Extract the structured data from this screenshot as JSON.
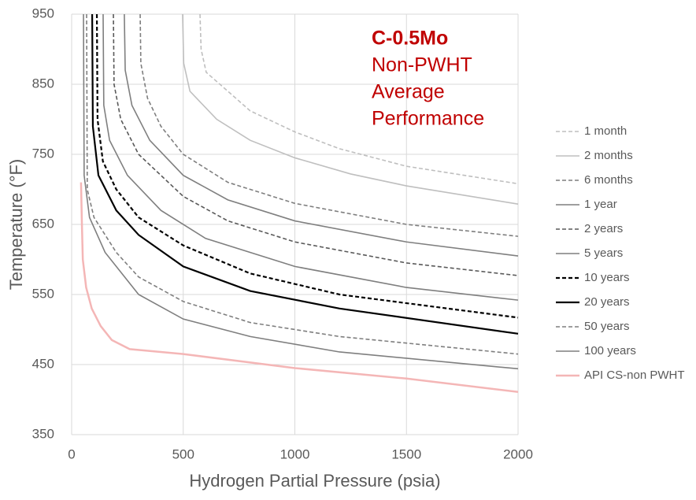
{
  "chart_data": {
    "type": "line",
    "annotation": {
      "lines": [
        "C-0.5Mo",
        "Non-PWHT",
        "Average",
        "Performance"
      ],
      "color": "#c00000"
    },
    "xlabel": "Hydrogen Partial Pressure (psia)",
    "ylabel": "Temperature (°F)",
    "xlim": [
      0,
      2000
    ],
    "xticks": [
      0,
      500,
      1000,
      1500,
      2000
    ],
    "ylim": [
      350,
      950
    ],
    "yticks": [
      350,
      450,
      550,
      650,
      750,
      850,
      950
    ],
    "grid": true,
    "legend": "right",
    "series": [
      {
        "name": "1 month",
        "color": "#bfbfbf",
        "dash": true,
        "x": [
          575,
          580,
          603,
          700,
          800,
          1000,
          1200,
          1500,
          2000
        ],
        "values": [
          950,
          900,
          867,
          840,
          812,
          782,
          758,
          733,
          708
        ]
      },
      {
        "name": "2 months",
        "color": "#bfbfbf",
        "dash": false,
        "x": [
          497,
          502,
          530,
          650,
          800,
          1000,
          1250,
          1500,
          2000
        ],
        "values": [
          950,
          880,
          840,
          800,
          770,
          745,
          722,
          705,
          679
        ]
      },
      {
        "name": "6 months",
        "color": "#7f7f7f",
        "dash": true,
        "x": [
          307,
          310,
          340,
          400,
          500,
          700,
          1000,
          1500,
          2000
        ],
        "values": [
          950,
          880,
          830,
          790,
          750,
          710,
          680,
          650,
          633
        ]
      },
      {
        "name": "1 year",
        "color": "#7f7f7f",
        "dash": false,
        "x": [
          236,
          240,
          270,
          350,
          500,
          700,
          1000,
          1500,
          2000
        ],
        "values": [
          950,
          870,
          820,
          770,
          720,
          685,
          655,
          625,
          605
        ]
      },
      {
        "name": "2 years",
        "color": "#595959",
        "dash": true,
        "x": [
          187,
          190,
          220,
          300,
          500,
          700,
          1000,
          1500,
          2000
        ],
        "values": [
          950,
          850,
          800,
          750,
          690,
          655,
          625,
          595,
          577
        ]
      },
      {
        "name": "5 years",
        "color": "#7f7f7f",
        "dash": false,
        "x": [
          141,
          144,
          170,
          250,
          400,
          600,
          1000,
          1500,
          2000
        ],
        "values": [
          950,
          820,
          770,
          720,
          670,
          630,
          590,
          560,
          542
        ]
      },
      {
        "name": "10 years",
        "color": "#000000",
        "dash": true,
        "x": [
          113,
          116,
          140,
          200,
          300,
          500,
          800,
          1200,
          2000
        ],
        "values": [
          950,
          800,
          740,
          700,
          660,
          620,
          580,
          550,
          517
        ]
      },
      {
        "name": "20 years",
        "color": "#000000",
        "dash": false,
        "x": [
          92,
          95,
          120,
          200,
          300,
          500,
          800,
          1200,
          2000
        ],
        "values": [
          950,
          790,
          720,
          670,
          635,
          590,
          555,
          530,
          494
        ]
      },
      {
        "name": "50 years",
        "color": "#7f7f7f",
        "dash": true,
        "x": [
          67,
          70,
          100,
          200,
          300,
          500,
          800,
          1200,
          2000
        ],
        "values": [
          950,
          700,
          660,
          610,
          575,
          540,
          510,
          490,
          465
        ]
      },
      {
        "name": "100 years",
        "color": "#7f7f7f",
        "dash": false,
        "x": [
          53,
          56,
          80,
          150,
          300,
          500,
          800,
          1200,
          2000
        ],
        "values": [
          950,
          720,
          660,
          610,
          550,
          515,
          490,
          468,
          444
        ]
      },
      {
        "name": "API CS-non PWHT",
        "color": "#f4b6b6",
        "dash": false,
        "x": [
          42,
          46,
          50,
          65,
          90,
          130,
          180,
          260,
          500,
          1000,
          1500,
          2000
        ],
        "values": [
          710,
          650,
          600,
          560,
          530,
          505,
          485,
          472,
          465,
          445,
          430,
          411
        ]
      }
    ]
  }
}
